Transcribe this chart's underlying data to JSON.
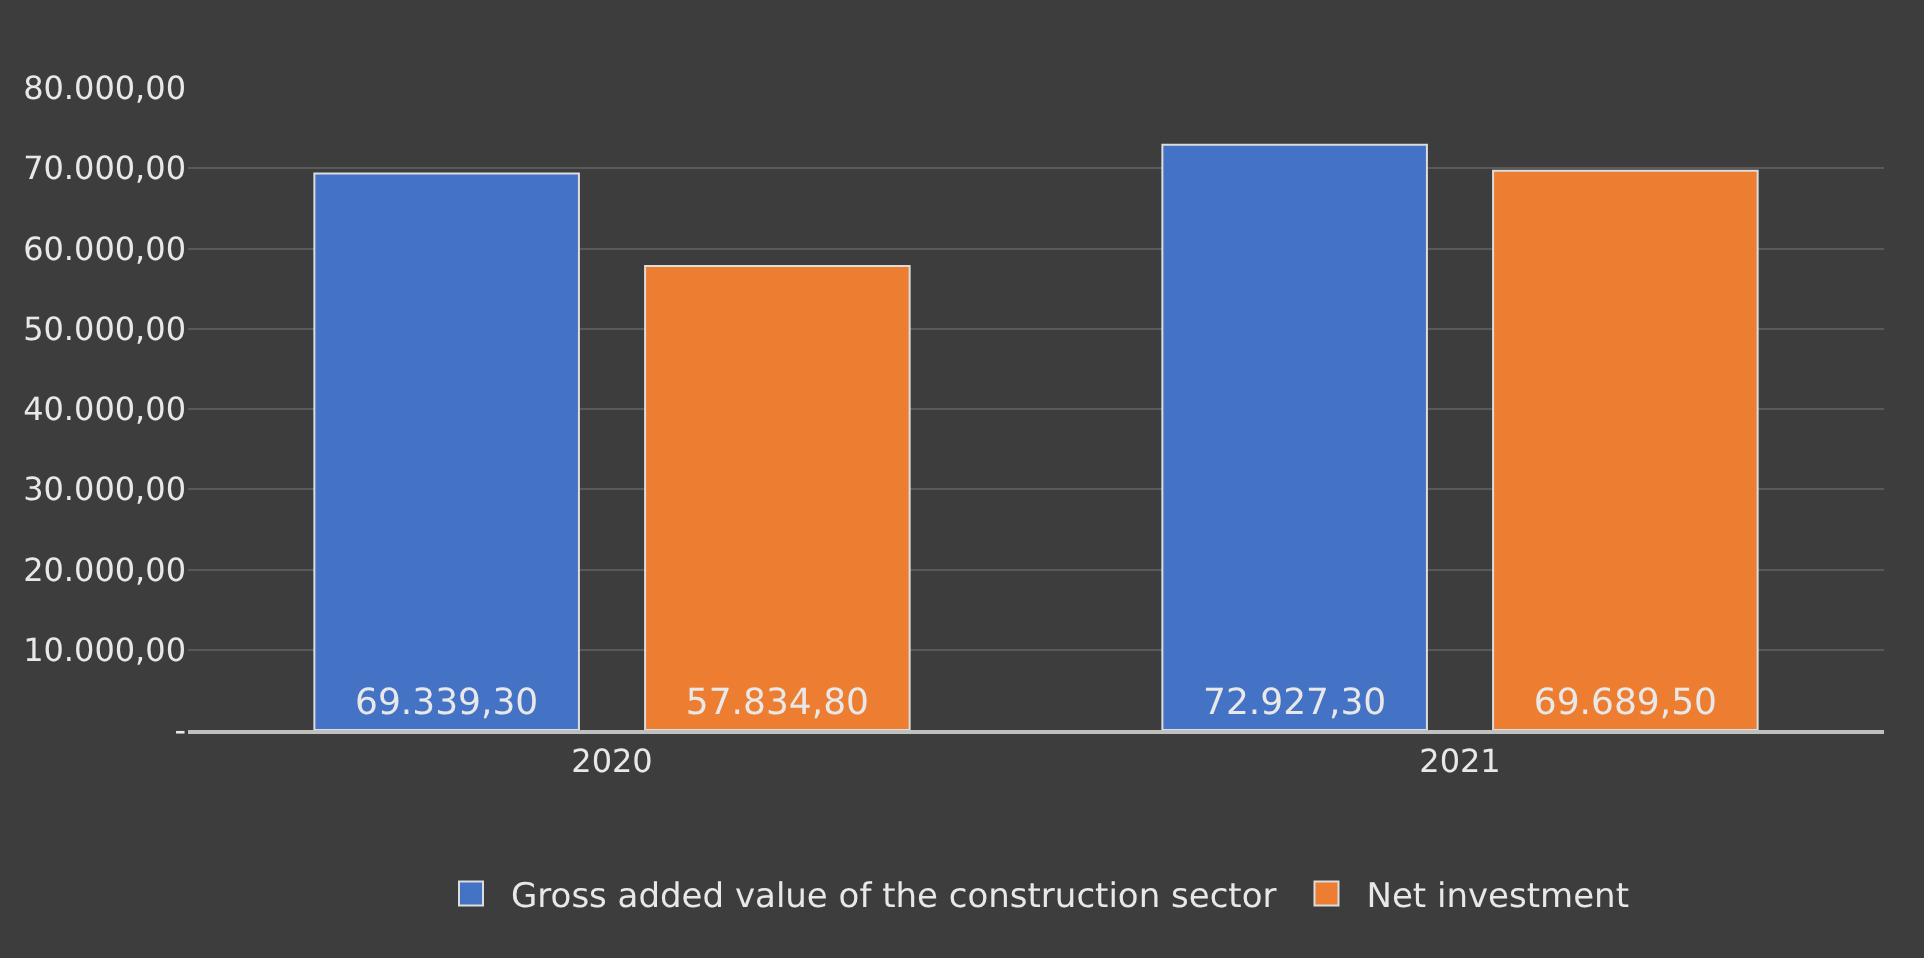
{
  "chart_data": {
    "type": "bar",
    "categories": [
      "2020",
      "2021"
    ],
    "series": [
      {
        "name": "Gross added value of the construction sector",
        "color": "#4472c4",
        "values": [
          69339.3,
          72927.3
        ],
        "value_labels": [
          "69.339,30",
          "72.927,30"
        ]
      },
      {
        "name": "Net investment",
        "color": "#ed7d31",
        "values": [
          57834.8,
          69689.5
        ],
        "value_labels": [
          "57.834,80",
          "69.689,50"
        ]
      }
    ],
    "ylim": [
      0,
      80000
    ],
    "yticks": [
      {
        "value": 0,
        "label": "-"
      },
      {
        "value": 10000,
        "label": "10.000,00"
      },
      {
        "value": 20000,
        "label": "20.000,00"
      },
      {
        "value": 30000,
        "label": "30.000,00"
      },
      {
        "value": 40000,
        "label": "40.000,00"
      },
      {
        "value": 50000,
        "label": "50.000,00"
      },
      {
        "value": 60000,
        "label": "60.000,00"
      },
      {
        "value": 70000,
        "label": "70.000,00"
      },
      {
        "value": 80000,
        "label": "80.000,00"
      }
    ],
    "grid": "y",
    "legend": "bottom"
  }
}
